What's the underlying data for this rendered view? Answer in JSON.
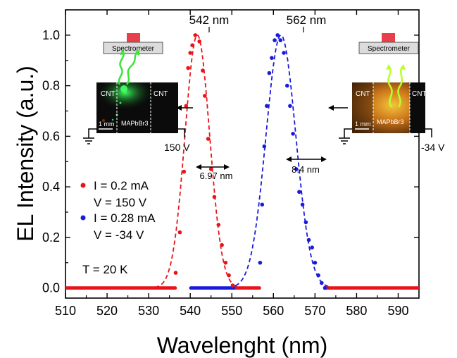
{
  "chart_data": {
    "type": "scatter",
    "title": "",
    "xlabel": "Wavelenght (nm)",
    "ylabel": "EL Intensity (a.u.)",
    "xlim": [
      510,
      595
    ],
    "ylim": [
      -0.04,
      1.1
    ],
    "xticks": [
      510,
      520,
      530,
      540,
      550,
      560,
      570,
      580,
      590
    ],
    "yticks": [
      0.0,
      0.2,
      0.4,
      0.6,
      0.8,
      1.0
    ],
    "grid": false,
    "series": [
      {
        "color": "#e8141b",
        "points": [
          [
            536.5,
            0.06
          ],
          [
            537.5,
            0.22
          ],
          [
            538.5,
            0.46
          ],
          [
            539,
            0.72
          ],
          [
            539.5,
            0.87
          ],
          [
            540,
            0.93
          ],
          [
            540.5,
            0.96
          ],
          [
            541.2,
            1.0
          ],
          [
            542.2,
            0.975
          ],
          [
            543,
            0.86
          ],
          [
            543.5,
            0.76
          ],
          [
            544.3,
            0.59
          ],
          [
            545,
            0.47
          ],
          [
            545.8,
            0.36
          ],
          [
            546.8,
            0.25
          ],
          [
            547.6,
            0.17
          ],
          [
            548.5,
            0.1
          ],
          [
            549.3,
            0.05
          ],
          [
            550.2,
            0.01
          ]
        ],
        "fit": {
          "center": 541.7,
          "fwhm": 6.97
        }
      },
      {
        "color": "#1a1adc",
        "points": [
          [
            556.8,
            0.1
          ],
          [
            557.3,
            0.33
          ],
          [
            557.8,
            0.56
          ],
          [
            558.4,
            0.72
          ],
          [
            559,
            0.85
          ],
          [
            559.6,
            0.91
          ],
          [
            560.3,
            0.98
          ],
          [
            561,
            1.0
          ],
          [
            561.7,
            0.98
          ],
          [
            562.5,
            0.93
          ],
          [
            563.3,
            0.8
          ],
          [
            564,
            0.72
          ],
          [
            564.7,
            0.61
          ],
          [
            565.5,
            0.47
          ],
          [
            566.2,
            0.38
          ],
          [
            567,
            0.33
          ],
          [
            567.8,
            0.26
          ],
          [
            568.5,
            0.19
          ],
          [
            569.3,
            0.16
          ],
          [
            570,
            0.1
          ],
          [
            570.8,
            0.05
          ],
          [
            571.6,
            0.02
          ],
          [
            572.4,
            0.0
          ]
        ],
        "fit": {
          "center": 561.8,
          "fwhm": 8.4
        }
      }
    ],
    "legend": {
      "entries": [
        {
          "color": "#e8141b",
          "line1": "I = 0.2 mA",
          "line2": "V = 150 V"
        },
        {
          "color": "#1a1adc",
          "line1": "I = 0.28 mA",
          "line2": "V = -34 V"
        }
      ],
      "extra": "T = 20 K"
    },
    "annotations": {
      "peak1": "542 nm",
      "peak2": "562 nm",
      "fwhm1": "6.97 nm",
      "fwhm2": "8.4 nm"
    },
    "insets": [
      {
        "spectrometer": "Spectrometer",
        "cnt_left": "CNT",
        "cnt_right": "CNT",
        "material": "MAPbBr3",
        "scale": "1 mm",
        "voltage": "150 V"
      },
      {
        "spectrometer": "Spectrometer",
        "cnt_left": "CNT",
        "cnt_right": "CNT",
        "material": "MAPbBr3",
        "scale": "1 mm",
        "voltage": "-34 V"
      }
    ]
  }
}
